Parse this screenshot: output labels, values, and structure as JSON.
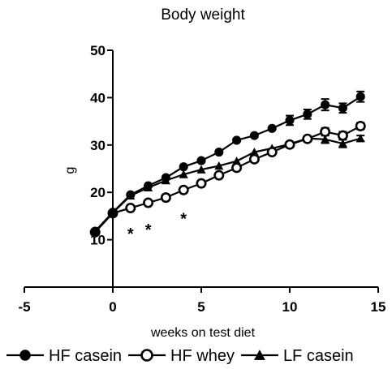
{
  "chart_data": {
    "type": "line",
    "title": "Body weight",
    "xlabel": "weeks on test diet",
    "ylabel": "g",
    "xlim": [
      -5,
      15
    ],
    "ylim": [
      0,
      50
    ],
    "xticks": [
      -5,
      0,
      5,
      10,
      15
    ],
    "yticks": [
      10,
      20,
      30,
      40,
      50
    ],
    "x_tick_labels": [
      "-5",
      "0",
      "5",
      "10",
      "15"
    ],
    "y_tick_labels": [
      "10",
      "20",
      "30",
      "40",
      "50"
    ],
    "legend_position": "bottom",
    "grid": false,
    "series": [
      {
        "name": "HF casein",
        "marker": "filled-circle",
        "color": "#000000",
        "x": [
          -1,
          0,
          1,
          2,
          3,
          4,
          5,
          6,
          7,
          8,
          9,
          10,
          11,
          12,
          13,
          14
        ],
        "values": [
          11.8,
          15.8,
          19.5,
          21.4,
          23.1,
          25.4,
          26.7,
          28.5,
          31.0,
          32.0,
          33.5,
          35.2,
          36.5,
          38.5,
          37.8,
          40.2
        ],
        "error": [
          0,
          0,
          0,
          0,
          0,
          0,
          0,
          0,
          0,
          0,
          0,
          1.0,
          1.0,
          1.2,
          1.0,
          1.1
        ]
      },
      {
        "name": "HF whey",
        "marker": "open-circle",
        "color": "#000000",
        "x": [
          -1,
          0,
          1,
          2,
          3,
          4,
          5,
          6,
          7,
          8,
          9,
          10,
          11,
          12,
          13,
          14
        ],
        "values": [
          11.6,
          15.6,
          16.7,
          17.8,
          18.9,
          20.5,
          21.9,
          23.6,
          25.2,
          27.0,
          28.5,
          30.1,
          31.3,
          32.8,
          32.0,
          34.0
        ],
        "error": [
          0,
          0,
          0,
          0,
          0,
          0,
          0,
          0,
          0,
          0,
          0,
          0,
          0,
          0.8,
          0.8,
          0.7
        ]
      },
      {
        "name": "LF casein",
        "marker": "filled-triangle",
        "color": "#000000",
        "x": [
          -1,
          0,
          1,
          2,
          3,
          4,
          5,
          6,
          7,
          8,
          9,
          10,
          11,
          12,
          13,
          14
        ],
        "values": [
          11.7,
          15.7,
          19.3,
          21.0,
          22.5,
          23.8,
          24.8,
          25.6,
          26.6,
          28.5,
          29.3,
          30.2,
          31.4,
          31.2,
          30.3,
          31.4
        ],
        "error": [
          0,
          0,
          0,
          0,
          0,
          0,
          0,
          0,
          0,
          0,
          0,
          0,
          0,
          0.8,
          0.8,
          0.6
        ]
      }
    ],
    "annotations": [
      {
        "text": "*",
        "x": 1,
        "y": 12.2
      },
      {
        "text": "*",
        "x": 2,
        "y": 13.0
      },
      {
        "text": "*",
        "x": 4,
        "y": 15.3
      }
    ]
  }
}
